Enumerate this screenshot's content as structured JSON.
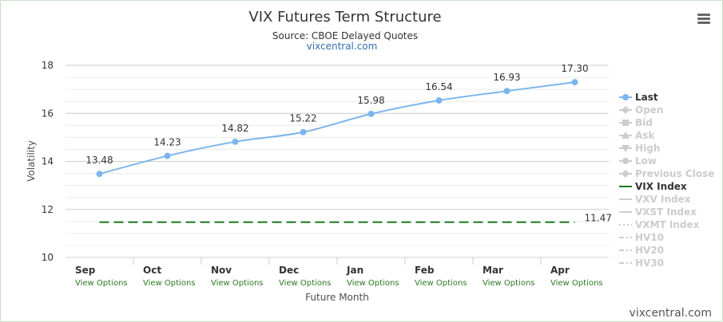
{
  "header": {
    "title": "VIX Futures Term Structure",
    "subtitle": "Source: CBOE Delayed Quotes",
    "source_link": "vixcentral.com"
  },
  "menu_icon": "hamburger-menu-icon",
  "x_axis": {
    "label": "Future Month",
    "option_link_text": "View Options"
  },
  "y_axis": {
    "label": "Volatility"
  },
  "credit": "vixcentral.com",
  "colors": {
    "last_series": "#7cb5ec",
    "vix_index": "#1e7a1e",
    "grid": "#cccccc",
    "legend_inactive": "#cccccc",
    "option_link": "#2a7a1e",
    "frame_border": "#c9dfc5"
  },
  "chart_data": {
    "type": "line",
    "title": "VIX Futures Term Structure",
    "subtitle": "Source: CBOE Delayed Quotes",
    "xlabel": "Future Month",
    "ylabel": "Volatility",
    "categories": [
      "Sep",
      "Oct",
      "Nov",
      "Dec",
      "Jan",
      "Feb",
      "Mar",
      "Apr"
    ],
    "ylim": [
      10,
      18
    ],
    "yticks": [
      10,
      12,
      14,
      16,
      18
    ],
    "grid": true,
    "legend_position": "right",
    "series": [
      {
        "name": "Last",
        "values": [
          13.48,
          14.23,
          14.82,
          15.22,
          15.98,
          16.54,
          16.93,
          17.3
        ],
        "visible": true,
        "data_labels": [
          "13.48",
          "14.23",
          "14.82",
          "15.22",
          "15.98",
          "16.54",
          "16.93",
          "17.30"
        ]
      },
      {
        "name": "VIX Index",
        "values": [
          11.47,
          11.47,
          11.47,
          11.47,
          11.47,
          11.47,
          11.47,
          11.47
        ],
        "visible": true,
        "style": "dashed",
        "end_label": "11.47"
      }
    ],
    "legend": [
      {
        "name": "Last",
        "visible": true
      },
      {
        "name": "Open",
        "visible": false
      },
      {
        "name": "Bid",
        "visible": false
      },
      {
        "name": "Ask",
        "visible": false
      },
      {
        "name": "High",
        "visible": false
      },
      {
        "name": "Low",
        "visible": false
      },
      {
        "name": "Previous Close",
        "visible": false
      },
      {
        "name": "VIX Index",
        "visible": true
      },
      {
        "name": "VXV Index",
        "visible": false
      },
      {
        "name": "VXST Index",
        "visible": false
      },
      {
        "name": "VXMT Index",
        "visible": false
      },
      {
        "name": "HV10",
        "visible": false
      },
      {
        "name": "HV20",
        "visible": false
      },
      {
        "name": "HV30",
        "visible": false
      }
    ]
  }
}
